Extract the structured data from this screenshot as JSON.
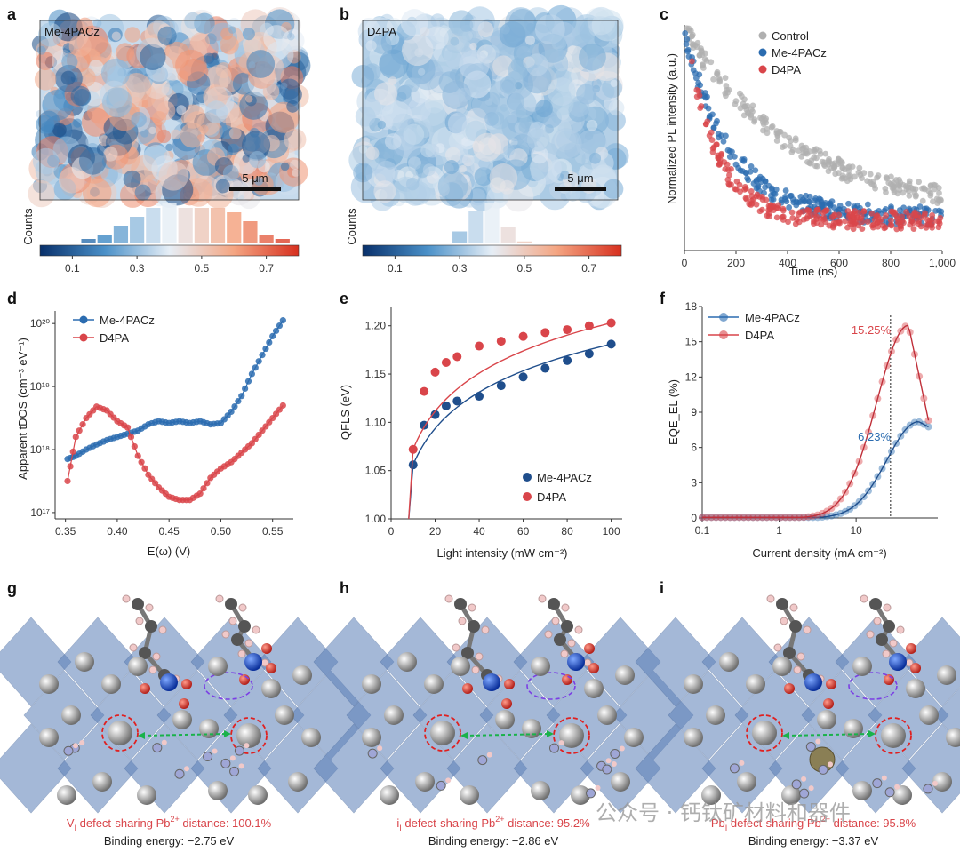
{
  "panel_labels": [
    "a",
    "b",
    "c",
    "d",
    "e",
    "f",
    "g",
    "h",
    "i"
  ],
  "colors": {
    "blue": "#2b6cb0",
    "red": "#d9454a",
    "grey": "#b0b0b0",
    "dark_blue": "#1f4e8c"
  },
  "chart_data": [
    {
      "id": "a",
      "type": "heatmap",
      "title": "Me-4PACz",
      "scale_bar": "5 μm",
      "colorbar_ticks": [
        "0.1",
        "0.3",
        "0.5",
        "0.7"
      ],
      "colorbar_range": [
        0.0,
        0.8
      ],
      "histogram_ylabel": "Counts",
      "histogram_bins": [
        0.15,
        0.2,
        0.25,
        0.3,
        0.35,
        0.4,
        0.45,
        0.5,
        0.55,
        0.6,
        0.65,
        0.7,
        0.75
      ],
      "histogram_counts": [
        1,
        2,
        4,
        6,
        8,
        9,
        8,
        8,
        8,
        7,
        5,
        2,
        1
      ]
    },
    {
      "id": "b",
      "type": "heatmap",
      "title": "D4PA",
      "scale_bar": "5 μm",
      "colorbar_ticks": [
        "0.1",
        "0.3",
        "0.5",
        "0.7"
      ],
      "colorbar_range": [
        0.0,
        0.8
      ],
      "histogram_ylabel": "Counts",
      "histogram_bins": [
        0.3,
        0.35,
        0.4,
        0.45,
        0.5
      ],
      "histogram_counts": [
        3,
        8,
        10,
        4,
        0.5
      ]
    },
    {
      "id": "c",
      "type": "scatter",
      "xlabel": "Time (ns)",
      "ylabel": "Normalized PL intensity (a.u.)",
      "xlim": [
        0,
        1000
      ],
      "xticks": [
        "0",
        "200",
        "400",
        "600",
        "800",
        "1,000"
      ],
      "series": [
        {
          "name": "Control",
          "tau": 420,
          "floor": 0.12
        },
        {
          "name": "Me-4PACz",
          "tau": 170,
          "floor": 0.1
        },
        {
          "name": "D4PA",
          "tau": 120,
          "floor": 0.08
        }
      ]
    },
    {
      "id": "d",
      "type": "scatter",
      "xlabel": "E(ω) (V)",
      "ylabel": "Apparent tDOS (cm⁻³ eV⁻¹)",
      "xlim": [
        0.34,
        0.57
      ],
      "ylim_log10": [
        16.9,
        20.2
      ],
      "xticks": [
        "0.35",
        "0.40",
        "0.45",
        "0.50",
        "0.55"
      ],
      "yticks": [
        "10¹⁷",
        "10¹⁸",
        "10¹⁹",
        "10²⁰"
      ],
      "series": [
        {
          "name": "Me-4PACz",
          "x": [
            0.352,
            0.36,
            0.37,
            0.38,
            0.39,
            0.4,
            0.41,
            0.42,
            0.43,
            0.44,
            0.45,
            0.46,
            0.47,
            0.48,
            0.49,
            0.5,
            0.51,
            0.52,
            0.53,
            0.54,
            0.55,
            0.56
          ],
          "log10y": [
            17.85,
            17.9,
            18.0,
            18.08,
            18.15,
            18.2,
            18.25,
            18.3,
            18.4,
            18.45,
            18.42,
            18.45,
            18.42,
            18.45,
            18.4,
            18.42,
            18.6,
            18.85,
            19.2,
            19.5,
            19.8,
            20.05
          ]
        },
        {
          "name": "D4PA",
          "x": [
            0.352,
            0.36,
            0.37,
            0.38,
            0.39,
            0.4,
            0.41,
            0.42,
            0.43,
            0.44,
            0.45,
            0.46,
            0.47,
            0.48,
            0.49,
            0.5,
            0.51,
            0.52,
            0.53,
            0.54,
            0.55,
            0.56
          ],
          "log10y": [
            17.5,
            18.2,
            18.5,
            18.68,
            18.62,
            18.45,
            18.35,
            17.9,
            17.6,
            17.4,
            17.25,
            17.2,
            17.2,
            17.3,
            17.55,
            17.7,
            17.8,
            17.95,
            18.1,
            18.3,
            18.5,
            18.7
          ]
        }
      ]
    },
    {
      "id": "e",
      "type": "scatter",
      "xlabel": "Light intensity (mW cm⁻²)",
      "ylabel": "QFLS (eV)",
      "xlim": [
        0,
        105
      ],
      "ylim": [
        1.0,
        1.22
      ],
      "xticks": [
        "0",
        "20",
        "40",
        "60",
        "80",
        "100"
      ],
      "yticks": [
        "1.00",
        "1.05",
        "1.10",
        "1.15",
        "1.20"
      ],
      "series": [
        {
          "name": "Me-4PACz",
          "x": [
            10,
            15,
            20,
            25,
            30,
            40,
            50,
            60,
            70,
            80,
            90,
            100
          ],
          "y": [
            1.056,
            1.097,
            1.108,
            1.117,
            1.122,
            1.127,
            1.138,
            1.147,
            1.156,
            1.164,
            1.171,
            1.181
          ]
        },
        {
          "name": "D4PA",
          "x": [
            10,
            15,
            20,
            25,
            30,
            40,
            50,
            60,
            70,
            80,
            90,
            100
          ],
          "y": [
            1.072,
            1.132,
            1.152,
            1.162,
            1.168,
            1.179,
            1.184,
            1.189,
            1.193,
            1.196,
            1.2,
            1.203
          ]
        }
      ]
    },
    {
      "id": "f",
      "type": "line",
      "xlabel": "Current density (mA cm⁻²)",
      "ylabel": "EQE_EL (%)",
      "xlim_log10": [
        -1,
        2
      ],
      "ylim": [
        0,
        18
      ],
      "xticks": [
        "0.1",
        "1",
        "10"
      ],
      "yticks": [
        "0",
        "3",
        "6",
        "9",
        "12",
        "15",
        "18"
      ],
      "vline_x": 28,
      "series": [
        {
          "name": "Me-4PACz",
          "peak": 8.2,
          "peak_x": 65,
          "annotation": "6.23%"
        },
        {
          "name": "D4PA",
          "peak": 16.4,
          "peak_x": 48,
          "annotation": "15.25%"
        }
      ]
    }
  ],
  "captions": [
    {
      "id": "g",
      "defect": "V",
      "sub": "I",
      "mid": " defect-sharing Pb",
      "sup": "2+",
      "tail": " distance: 100.1%",
      "binding": "Binding energy: −2.75 eV"
    },
    {
      "id": "h",
      "defect": "i",
      "sub": "I",
      "mid": " defect-sharing Pb",
      "sup": "2+",
      "tail": " distance: 95.2%",
      "binding": "Binding energy: −2.86 eV"
    },
    {
      "id": "i",
      "defect": "Pb",
      "sub": "I",
      "mid": " defect-sharing Pb",
      "sup": "2+",
      "tail": " distance: 95.8%",
      "binding": "Binding energy: −3.37 eV"
    }
  ],
  "watermark": "公众号 · 钙钛矿材料和器件"
}
